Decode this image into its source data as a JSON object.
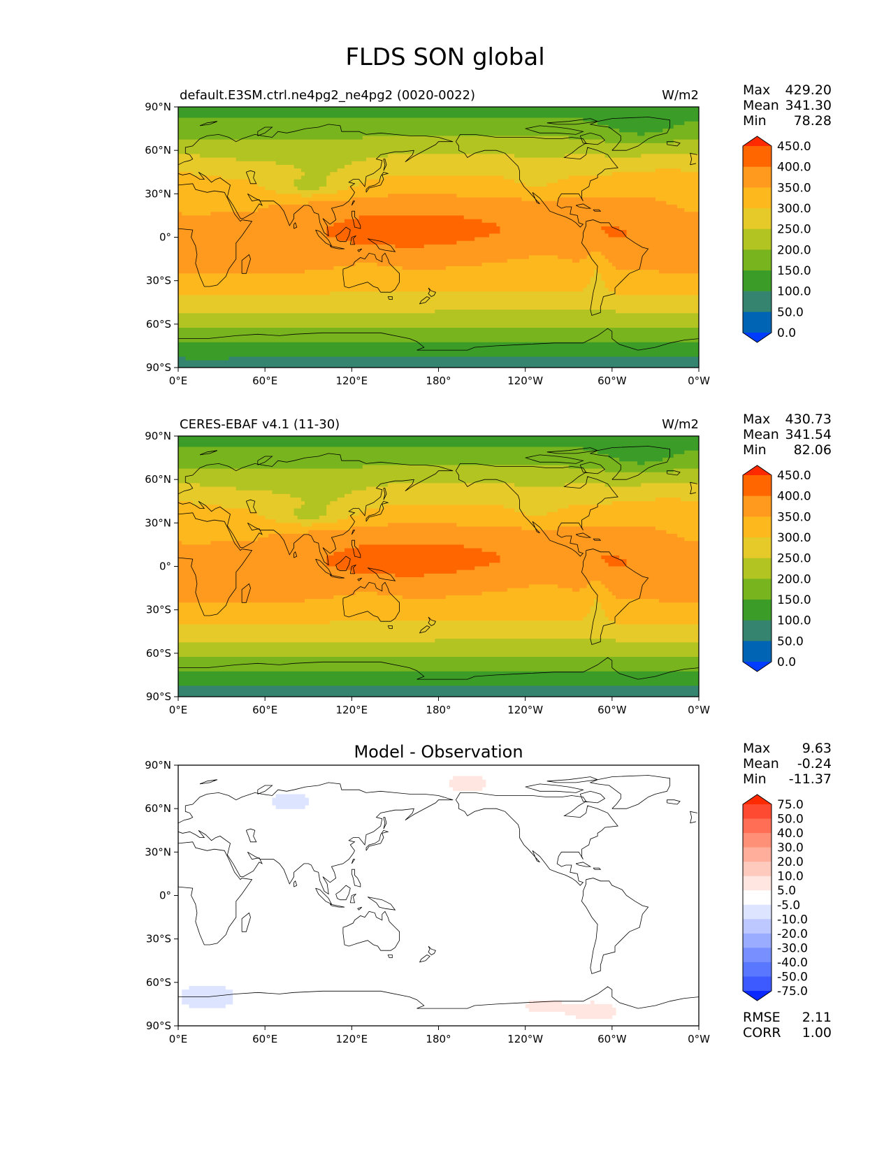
{
  "figure": {
    "title": "FLDS SON global"
  },
  "lat_ticks": [
    "90°N",
    "60°N",
    "30°N",
    "0°",
    "30°S",
    "60°S",
    "90°S"
  ],
  "lon_ticks": [
    "0°E",
    "60°E",
    "120°E",
    "180°",
    "120°W",
    "60°W",
    "0°W"
  ],
  "panels": [
    {
      "id": "model",
      "left_title": "default.E3SM.ctrl.ne4pg2_ne4pg2 (0020-0022)",
      "center_title": "",
      "units": "W/m2",
      "stats": [
        {
          "label": "Max",
          "value": "429.20"
        },
        {
          "label": "Mean",
          "value": "341.30"
        },
        {
          "label": "Min",
          "value": "78.28"
        }
      ],
      "colorbar": "abs",
      "field": "model"
    },
    {
      "id": "obs",
      "left_title": "CERES-EBAF v4.1 (11-30)",
      "center_title": "",
      "units": "W/m2",
      "stats": [
        {
          "label": "Max",
          "value": "430.73"
        },
        {
          "label": "Mean",
          "value": "341.54"
        },
        {
          "label": "Min",
          "value": "82.06"
        }
      ],
      "colorbar": "abs",
      "field": "obs"
    },
    {
      "id": "diff",
      "left_title": "",
      "center_title": "Model - Observation",
      "units": "",
      "stats": [
        {
          "label": "Max",
          "value": "9.63"
        },
        {
          "label": "Mean",
          "value": "-0.24"
        },
        {
          "label": "Min",
          "value": "-11.37"
        }
      ],
      "extra_stats": [
        {
          "label": "RMSE",
          "value": "2.11"
        },
        {
          "label": "CORR",
          "value": "1.00"
        }
      ],
      "colorbar": "diff",
      "field": "diff"
    }
  ],
  "colorbars": {
    "abs": {
      "levels": [
        "450.0",
        "400.0",
        "350.0",
        "300.0",
        "250.0",
        "200.0",
        "150.0",
        "100.0",
        "50.0",
        "0.0"
      ],
      "colors": [
        "#ff2a00",
        "#ff6600",
        "#ff9a1e",
        "#fdb81e",
        "#e6ca2a",
        "#b2c421",
        "#78b41e",
        "#3c9c28",
        "#348470",
        "#0064b4",
        "#003cff"
      ]
    },
    "diff": {
      "levels": [
        "75.0",
        "50.0",
        "40.0",
        "30.0",
        "20.0",
        "10.0",
        "5.0",
        "-5.0",
        "-10.0",
        "-20.0",
        "-30.0",
        "-40.0",
        "-50.0",
        "-75.0"
      ],
      "colors": [
        "#ff2a00",
        "#ff4a32",
        "#ff6e55",
        "#ff9078",
        "#ffae9c",
        "#ffcabe",
        "#ffe6e0",
        "#ffffff",
        "#dde4ff",
        "#bcc8ff",
        "#9aacff",
        "#7890ff",
        "#5a78ff",
        "#3c5aff",
        "#0a28ff"
      ]
    }
  },
  "map_data": {
    "type": "filled-contour-map",
    "projection": "PlateCarree, central longitude 180",
    "lon_range": [
      0,
      360
    ],
    "lat_range": [
      -90,
      90
    ],
    "abs_levels_Wm2": [
      0,
      50,
      100,
      150,
      200,
      250,
      300,
      350,
      400,
      450
    ],
    "diff_levels_Wm2": [
      -75,
      -50,
      -40,
      -30,
      -20,
      -10,
      -5,
      5,
      10,
      20,
      30,
      40,
      50,
      75
    ],
    "diff_anomalies": [
      {
        "lon": 200,
        "lat": 77,
        "value": 7
      },
      {
        "lon": 78,
        "lat": 65,
        "value": -7
      },
      {
        "lon": 20,
        "lat": -70,
        "value": -10
      },
      {
        "lon": 290,
        "lat": -80,
        "value": 7
      },
      {
        "lon": 250,
        "lat": -76,
        "value": 6
      },
      {
        "lon": 190,
        "lat": -80,
        "value": 5
      }
    ]
  }
}
